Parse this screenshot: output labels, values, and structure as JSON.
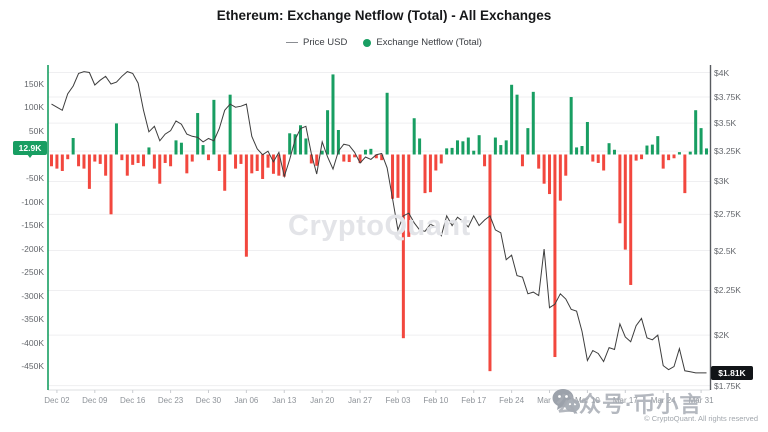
{
  "header": {
    "title": "Ethereum: Exchange Netflow (Total) - All Exchanges"
  },
  "legend": {
    "price_label": "Price USD",
    "netflow_label": "Exchange Netflow (Total)"
  },
  "badges": {
    "netflow_value": "12.9K",
    "price_value": "$1.81K"
  },
  "watermark": {
    "center_text": "CryptoQuant",
    "social_text": "公众号·币小言"
  },
  "footer": {
    "copyright": "© CryptoQuant. All rights reserved"
  },
  "colors": {
    "green": "#189E62",
    "red": "#F2473E",
    "price_line": "#3d3d3d",
    "grid": "#efeff1",
    "left_spine": "#189E62",
    "right_spine": "#585b60",
    "badge_price_bg": "#111417"
  },
  "chart_data": {
    "type": "bar",
    "title": "Ethereum: Exchange Netflow (Total) - All Exchanges",
    "xlabel": "",
    "ylabel_left": "Exchange Netflow (Total)",
    "ylabel_right": "Price USD",
    "netflow_unit": "K",
    "netflow_ylim": [
      -500,
      190
    ],
    "price_ylim": [
      1730,
      4080
    ],
    "price_scale": "log",
    "grid": "horizontal",
    "legend_position": "top",
    "left_axis": {
      "tick_values": [
        150,
        100,
        50,
        -50,
        -100,
        -150,
        -200,
        -250,
        -300,
        -350,
        -400,
        -450
      ],
      "tick_labels": [
        "150K",
        "100K",
        "50K",
        "-50K",
        "-100K",
        "-150K",
        "-200K",
        "-250K",
        "-300K",
        "-350K",
        "-400K",
        "-450K"
      ]
    },
    "right_axis": {
      "tick_values": [
        4000,
        3750,
        3500,
        3250,
        3000,
        2750,
        2500,
        2250,
        2000,
        1750
      ],
      "tick_labels": [
        "$4K",
        "$3.75K",
        "$3.5K",
        "$3.25K",
        "$3K",
        "$2.75K",
        "$2.5K",
        "$2.25K",
        "$2K",
        "$1.75K"
      ]
    },
    "x_tick_indices": [
      1,
      8,
      15,
      22,
      29,
      36,
      43,
      50,
      57,
      64,
      71,
      78,
      85,
      92,
      99,
      106,
      113,
      120
    ],
    "x_tick_labels": [
      "Dec 02",
      "Dec 09",
      "Dec 16",
      "Dec 23",
      "Dec 30",
      "Jan 06",
      "Jan 13",
      "Jan 20",
      "Jan 27",
      "Feb 03",
      "Feb 10",
      "Feb 17",
      "Feb 24",
      "Mar 03",
      "Mar 10",
      "Mar 17",
      "Mar 24",
      "Mar 31"
    ],
    "dates": [
      "Dec 01",
      "Dec 02",
      "Dec 03",
      "Dec 04",
      "Dec 05",
      "Dec 06",
      "Dec 07",
      "Dec 08",
      "Dec 09",
      "Dec 10",
      "Dec 11",
      "Dec 12",
      "Dec 13",
      "Dec 14",
      "Dec 15",
      "Dec 16",
      "Dec 17",
      "Dec 18",
      "Dec 19",
      "Dec 20",
      "Dec 21",
      "Dec 22",
      "Dec 23",
      "Dec 24",
      "Dec 25",
      "Dec 26",
      "Dec 27",
      "Dec 28",
      "Dec 29",
      "Dec 30",
      "Dec 31",
      "Jan 01",
      "Jan 02",
      "Jan 03",
      "Jan 04",
      "Jan 05",
      "Jan 06",
      "Jan 07",
      "Jan 08",
      "Jan 09",
      "Jan 10",
      "Jan 11",
      "Jan 12",
      "Jan 13",
      "Jan 14",
      "Jan 15",
      "Jan 16",
      "Jan 17",
      "Jan 18",
      "Jan 19",
      "Jan 20",
      "Jan 21",
      "Jan 22",
      "Jan 23",
      "Jan 24",
      "Jan 25",
      "Jan 26",
      "Jan 27",
      "Jan 28",
      "Jan 29",
      "Jan 30",
      "Jan 31",
      "Feb 01",
      "Feb 02",
      "Feb 03",
      "Feb 04",
      "Feb 05",
      "Feb 06",
      "Feb 07",
      "Feb 08",
      "Feb 09",
      "Feb 10",
      "Feb 11",
      "Feb 12",
      "Feb 13",
      "Feb 14",
      "Feb 15",
      "Feb 16",
      "Feb 17",
      "Feb 18",
      "Feb 19",
      "Feb 20",
      "Feb 21",
      "Feb 22",
      "Feb 23",
      "Feb 24",
      "Feb 25",
      "Feb 26",
      "Feb 27",
      "Feb 28",
      "Mar 01",
      "Mar 02",
      "Mar 03",
      "Mar 04",
      "Mar 05",
      "Mar 06",
      "Mar 07",
      "Mar 08",
      "Mar 09",
      "Mar 10",
      "Mar 11",
      "Mar 12",
      "Mar 13",
      "Mar 14",
      "Mar 15",
      "Mar 16",
      "Mar 17",
      "Mar 18",
      "Mar 19",
      "Mar 20",
      "Mar 21",
      "Mar 22",
      "Mar 23",
      "Mar 24",
      "Mar 25",
      "Mar 26",
      "Mar 27",
      "Mar 28",
      "Mar 29",
      "Mar 30",
      "Mar 31",
      "Apr 01"
    ],
    "series": [
      {
        "name": "Exchange Netflow (Total)",
        "type": "bar",
        "unit": "K",
        "current_value": 12.9,
        "values": [
          -25,
          -30,
          -35,
          -10,
          35,
          -25,
          -30,
          -73,
          -15,
          -20,
          -45,
          -127,
          66,
          -12,
          -45,
          -22,
          -18,
          -25,
          15,
          -30,
          -62,
          -18,
          -25,
          30,
          25,
          -40,
          -15,
          88,
          20,
          -12,
          116,
          -35,
          -77,
          127,
          -30,
          -20,
          -217,
          -40,
          -35,
          -52,
          -28,
          -41,
          -45,
          -47,
          45,
          43,
          62,
          34,
          -19,
          -24,
          8,
          94,
          170,
          52,
          -15,
          -16,
          -6,
          -18,
          10,
          12,
          -8,
          -12,
          131,
          -94,
          -92,
          -390,
          -175,
          77,
          34,
          -82,
          -80,
          -34,
          -19,
          13,
          14,
          30,
          28,
          36,
          8,
          41,
          -25,
          -460,
          36,
          20,
          30,
          148,
          127,
          -25,
          56,
          133,
          -30,
          -62,
          -84,
          -430,
          -98,
          -45,
          122,
          15,
          18,
          69,
          -15,
          -18,
          -34,
          24,
          10,
          -146,
          -202,
          -277,
          -13,
          -10,
          19,
          21,
          39,
          -30,
          -12,
          -8,
          5,
          -82,
          6,
          94,
          56,
          12.9
        ]
      },
      {
        "name": "Price USD",
        "type": "line",
        "unit": "USD",
        "current_value": 1810,
        "values": [
          3680,
          3650,
          3620,
          3780,
          3860,
          3990,
          4010,
          4000,
          3870,
          3920,
          3960,
          3880,
          3900,
          3960,
          4010,
          3990,
          3890,
          3620,
          3420,
          3470,
          3340,
          3400,
          3430,
          3520,
          3490,
          3400,
          3380,
          3370,
          3330,
          3360,
          3340,
          3450,
          3620,
          3680,
          3650,
          3660,
          3680,
          3380,
          3270,
          3220,
          3250,
          3160,
          3240,
          3040,
          3180,
          3350,
          3450,
          3470,
          3230,
          3060,
          3330,
          3200,
          3100,
          3250,
          3310,
          3300,
          3240,
          3150,
          3200,
          3180,
          3220,
          3230,
          3110,
          2870,
          2640,
          2740,
          2760,
          2690,
          2640,
          2630,
          2680,
          2660,
          2600,
          2740,
          2670,
          2730,
          2700,
          2660,
          2740,
          2670,
          2710,
          2740,
          2640,
          2620,
          2440,
          2470,
          2340,
          2330,
          2230,
          2240,
          2220,
          2510,
          2150,
          2170,
          2230,
          2200,
          2140,
          2130,
          2020,
          1870,
          1920,
          1905,
          1865,
          1935,
          1925,
          2060,
          1990,
          1965,
          2050,
          2090,
          1985,
          1975,
          2000,
          1845,
          1825,
          1840,
          1930,
          1820,
          1815,
          1810,
          1810,
          1810
        ]
      }
    ]
  }
}
